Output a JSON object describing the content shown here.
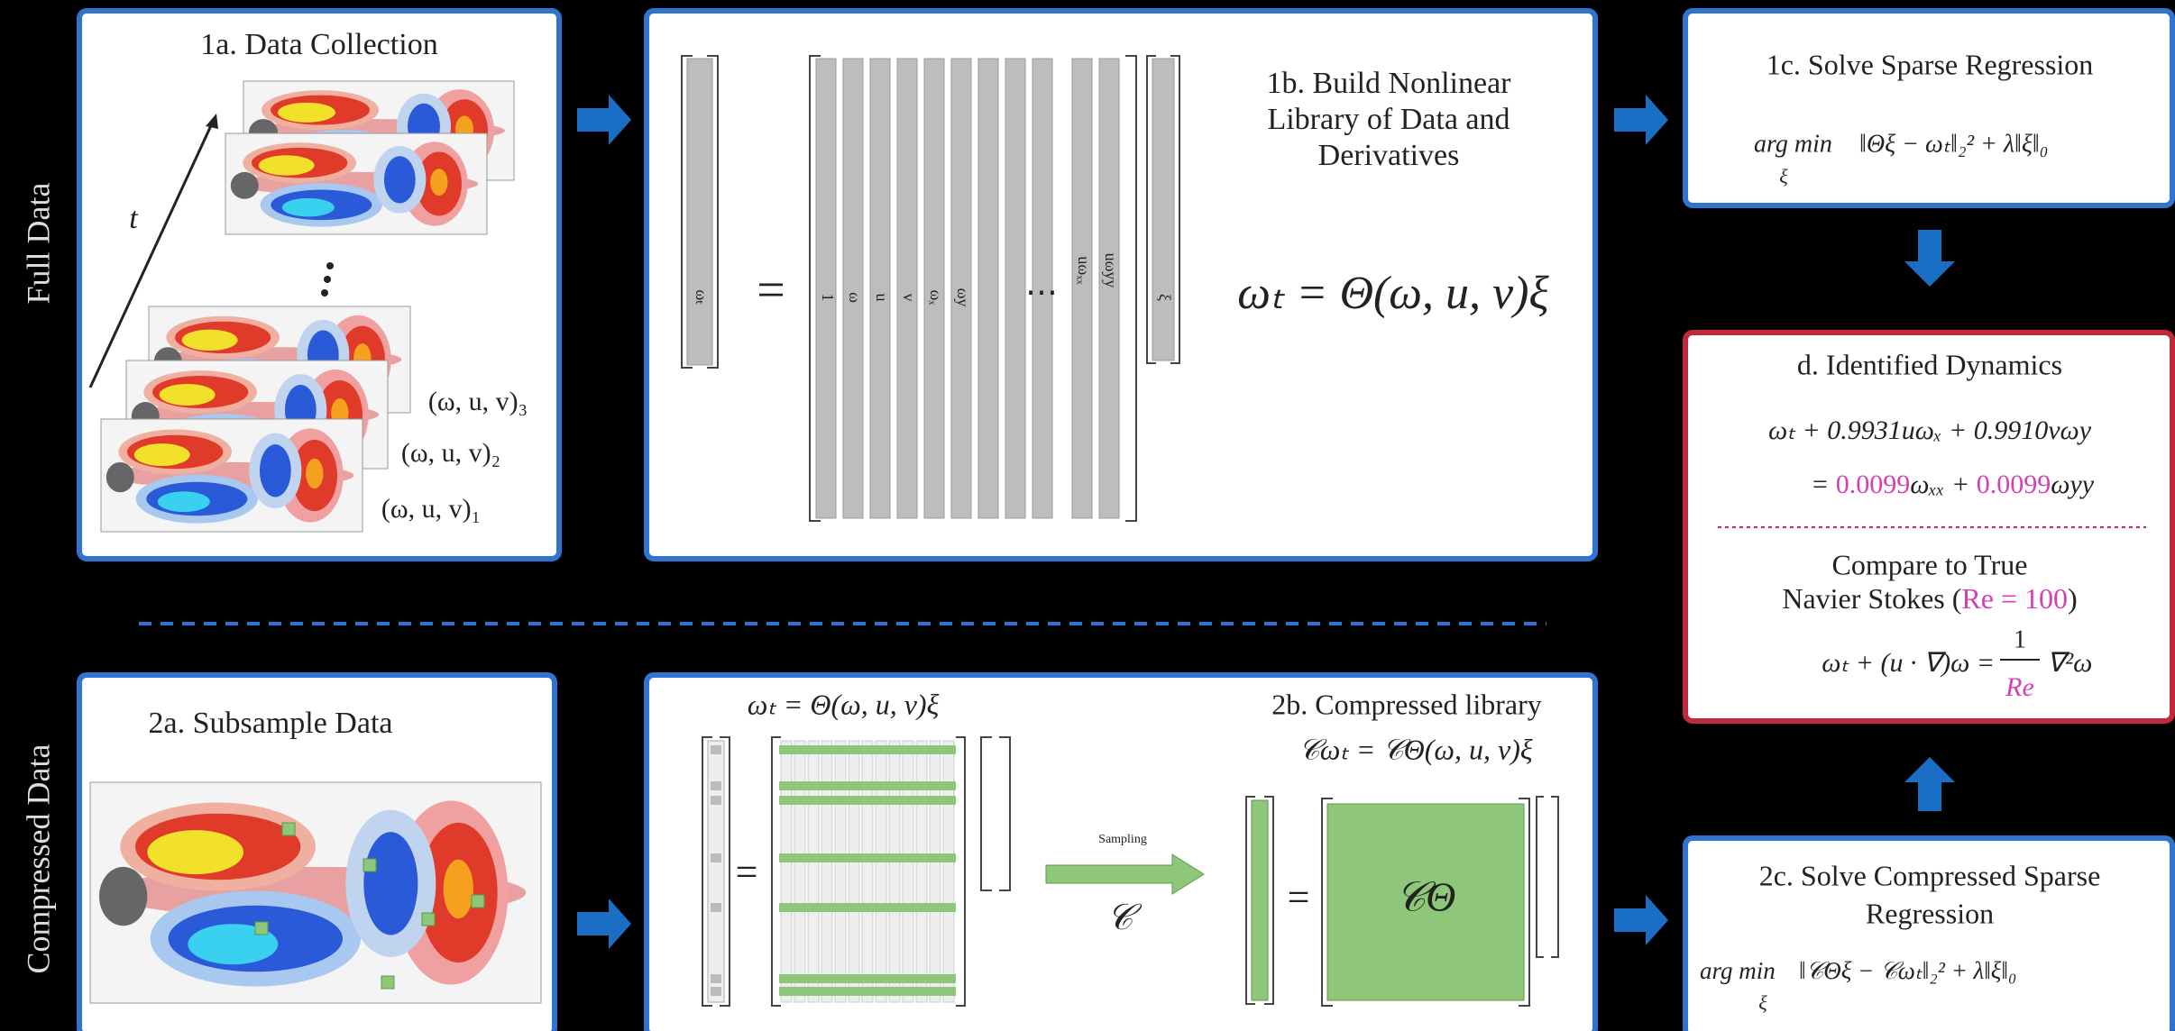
{
  "side_labels": {
    "full": "Full Data",
    "compressed": "Compressed  Data"
  },
  "panel_1a": {
    "title": "1a.  Data Collection",
    "time_axis": "t",
    "snapshots": [
      "(ω, u, v)₃",
      "(ω, u, v)₂",
      "(ω, u, v)₁"
    ]
  },
  "panel_1b": {
    "title": [
      "1b.  Build Nonlinear",
      "Library of Data and",
      "Derivatives"
    ],
    "equation": "ωₜ = Θ(ω, u, v)ξ",
    "lhs_label": "ωₜ",
    "equals": "=",
    "library_columns": [
      "1",
      "ω",
      "u",
      "v",
      "ωₓ",
      "ωy"
    ],
    "ellipsis": "⋯",
    "library_columns_end": [
      "uωₓₓ",
      "uωyy"
    ],
    "coefficients_label": "ξ"
  },
  "panel_1c": {
    "title": "1c.  Solve Sparse Regression",
    "argmin": "arg min",
    "argmin_sub": "ξ",
    "objective": "‖Θξ − ωₜ‖₂² + λ‖ξ‖₀"
  },
  "panel_d": {
    "title": "d.  Identified Dynamics",
    "line1": "ωₜ + 0.9931uωₓ + 0.9910vωy",
    "line2": [
      "= ",
      "0.0099",
      "ωₓₓ + ",
      "0.0099",
      "ωyy"
    ],
    "compare": [
      "Compare to True",
      "Navier Stokes (",
      "Re = 100",
      ")"
    ],
    "true_lhs": "ωₜ + (u · ∇)ω =",
    "true_num": "1",
    "true_den": "Re",
    "true_rhs": "∇²ω"
  },
  "panel_2a": {
    "title": "2a.  Subsample Data"
  },
  "panel_2b": {
    "equation_top": "ωₜ = Θ(ω, u, v)ξ",
    "equals": "=",
    "sampling": "Sampling",
    "sampling_symbol": "𝒞",
    "title": "2b.  Compressed library",
    "equation": "𝒞ωₜ = 𝒞Θ(ω, u, v)ξ",
    "matrix_label": "𝒞Θ"
  },
  "panel_2c": {
    "title": [
      "2c.  Solve Compressed Sparse",
      "Regression"
    ],
    "argmin": "arg min",
    "argmin_sub": "ξ",
    "objective": "‖𝒞Θξ − 𝒞ωₜ‖₂² + λ‖ξ‖₀"
  }
}
